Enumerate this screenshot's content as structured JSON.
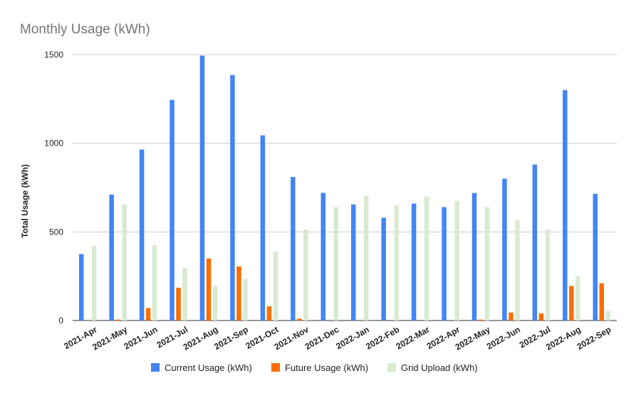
{
  "chart_data": {
    "type": "bar",
    "title": "Monthly Usage (kWh)",
    "xlabel": "",
    "ylabel": "Total Usage (kWh)",
    "ylim": [
      0,
      1500
    ],
    "yticks": [
      0,
      500,
      1000,
      1500
    ],
    "grid": true,
    "legend_position": "bottom",
    "categories": [
      "2021-Apr",
      "2021-May",
      "2021-Jun",
      "2021-Jul",
      "2021-Aug",
      "2021-Sep",
      "2021-Oct",
      "2021-Nov",
      "2021-Dec",
      "2022-Jan",
      "2022-Feb",
      "2022-Mar",
      "2022-Apr",
      "2022-May",
      "2022-Jun",
      "2022-Jul",
      "2022-Aug",
      "2022-Sep"
    ],
    "series": [
      {
        "name": "Current Usage (kWh)",
        "color": "#4285f4",
        "values": [
          375,
          710,
          965,
          1245,
          1495,
          1385,
          1045,
          810,
          720,
          655,
          580,
          660,
          640,
          720,
          800,
          880,
          1300,
          715
        ]
      },
      {
        "name": "Future Usage (kWh)",
        "color": "#ff6d01",
        "values": [
          0,
          5,
          70,
          185,
          350,
          305,
          80,
          10,
          0,
          0,
          0,
          0,
          0,
          5,
          45,
          40,
          195,
          210
        ]
      },
      {
        "name": "Grid Upload (kWh)",
        "color": "#d9ead3",
        "values": [
          420,
          655,
          425,
          295,
          195,
          235,
          390,
          515,
          640,
          705,
          650,
          700,
          675,
          640,
          565,
          515,
          250,
          55
        ]
      }
    ]
  }
}
